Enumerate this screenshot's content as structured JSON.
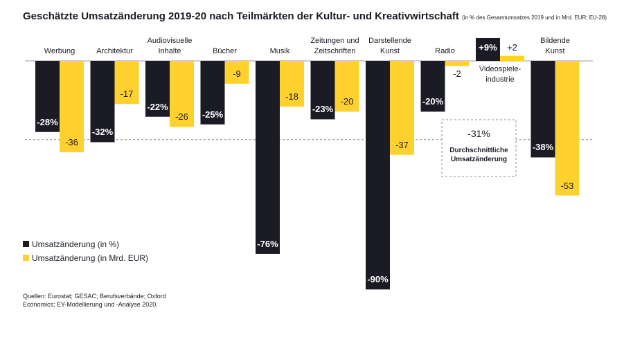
{
  "chart_data": {
    "type": "bar",
    "title": "Geschätzte Umsatzänderung 2019-20 nach Teilmärkten der Kultur- und Kreativwirtschaft",
    "subtitle": "(in % des Gesamtumsatzes 2019 und in Mrd. EUR; EU-28)",
    "categories": [
      "Werbung",
      "Architektur",
      "Audiovisuelle\nInhalte",
      "Bücher",
      "Musik",
      "Zeitungen und\nZeitschriften",
      "Darstellende\nKunst",
      "Radio",
      "Videospiele-\nindustrie",
      "Bildende\nKunst"
    ],
    "series": [
      {
        "name": "Umsatzänderung (in %)",
        "color": "#1b1b25",
        "values": [
          -28,
          -32,
          -22,
          -25,
          -76,
          -23,
          -90,
          -20,
          9,
          -38
        ],
        "value_labels": [
          "-28%",
          "-32%",
          "-22%",
          "-25%",
          "-76%",
          "-23%",
          "-90%",
          "-20%",
          "+9%",
          "-38%"
        ]
      },
      {
        "name": "Umsatzänderung (in Mrd. EUR)",
        "color": "#ffd12e",
        "values": [
          -36,
          -17,
          -26,
          -9,
          -18,
          -20,
          -37,
          -2,
          2,
          -53
        ],
        "value_labels": [
          "-36",
          "-17",
          "-26",
          "-9",
          "-18",
          "-20",
          "-37",
          "-2",
          "+2",
          "-53"
        ]
      }
    ],
    "average": {
      "value": -31,
      "label": "-31%",
      "text": "Durchschnittliche\nUmsatzänderung"
    },
    "source": "Quellen: Eurostat; GESAC; Berufsverbände; Oxford Economics; EY-Modellierung und -Analyse 2020."
  }
}
